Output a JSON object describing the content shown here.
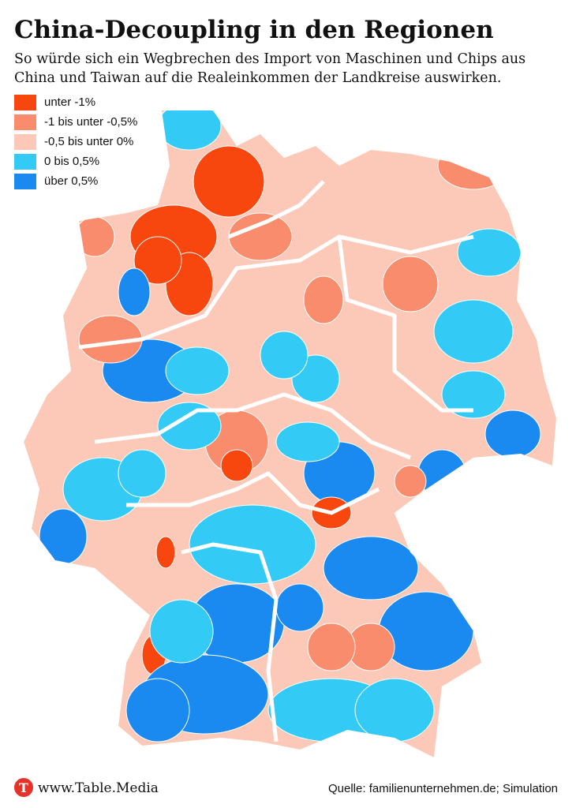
{
  "header": {
    "title": "China-Decoupling in den Regionen",
    "subtitle_lines": [
      "So würde sich ein Wegbrechen des Import von Maschinen und Chips aus",
      "China und Taiwan auf die Realeinkommen der Landkreise auswirken."
    ]
  },
  "legend": {
    "items": [
      {
        "label": "unter -1%",
        "color": "#f7470f"
      },
      {
        "label": "-1 bis unter -0,5%",
        "color": "#f98c6d"
      },
      {
        "label": "-0,5 bis unter 0%",
        "color": "#fcc8b8"
      },
      {
        "label": "0 bis 0,5%",
        "color": "#33cbf5"
      },
      {
        "label": "über 0,5%",
        "color": "#1a8af0"
      }
    ]
  },
  "footer": {
    "brand": "www.Table.Media",
    "source": "Quelle: familienunternehmen.de; Simulation"
  }
}
